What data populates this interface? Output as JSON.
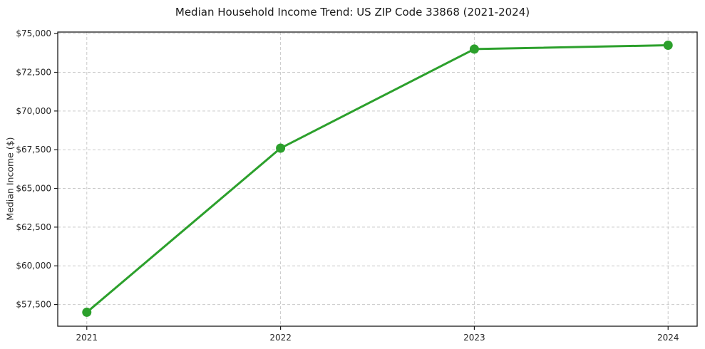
{
  "figure": {
    "background": "#ffffff"
  },
  "chart_data": {
    "type": "line",
    "title": "Median Household Income Trend: US ZIP Code 33868 (2021-2024)",
    "xlabel": "",
    "ylabel": "Median Income ($)",
    "x": [
      2021,
      2022,
      2023,
      2024
    ],
    "x_tick_labels": [
      "2021",
      "2022",
      "2023",
      "2024"
    ],
    "values": [
      57000,
      67600,
      74000,
      74250
    ],
    "y_ticks": [
      57500,
      60000,
      62500,
      65000,
      67500,
      70000,
      72500,
      75000
    ],
    "y_tick_labels": [
      "$57,500",
      "$60,000",
      "$62,500",
      "$65,000",
      "$67,500",
      "$70,000",
      "$72,500",
      "$75,000"
    ],
    "xlim": [
      2020.85,
      2024.15
    ],
    "ylim": [
      56100,
      75100
    ],
    "grid": true,
    "grid_style": "dashed",
    "legend": "none",
    "line_color": "#2ca02c",
    "marker": "circle",
    "marker_color": "#2ca02c",
    "grid_color": "#c9c9c9",
    "axis_color": "#1a1a1a",
    "text_color": "#262626"
  }
}
